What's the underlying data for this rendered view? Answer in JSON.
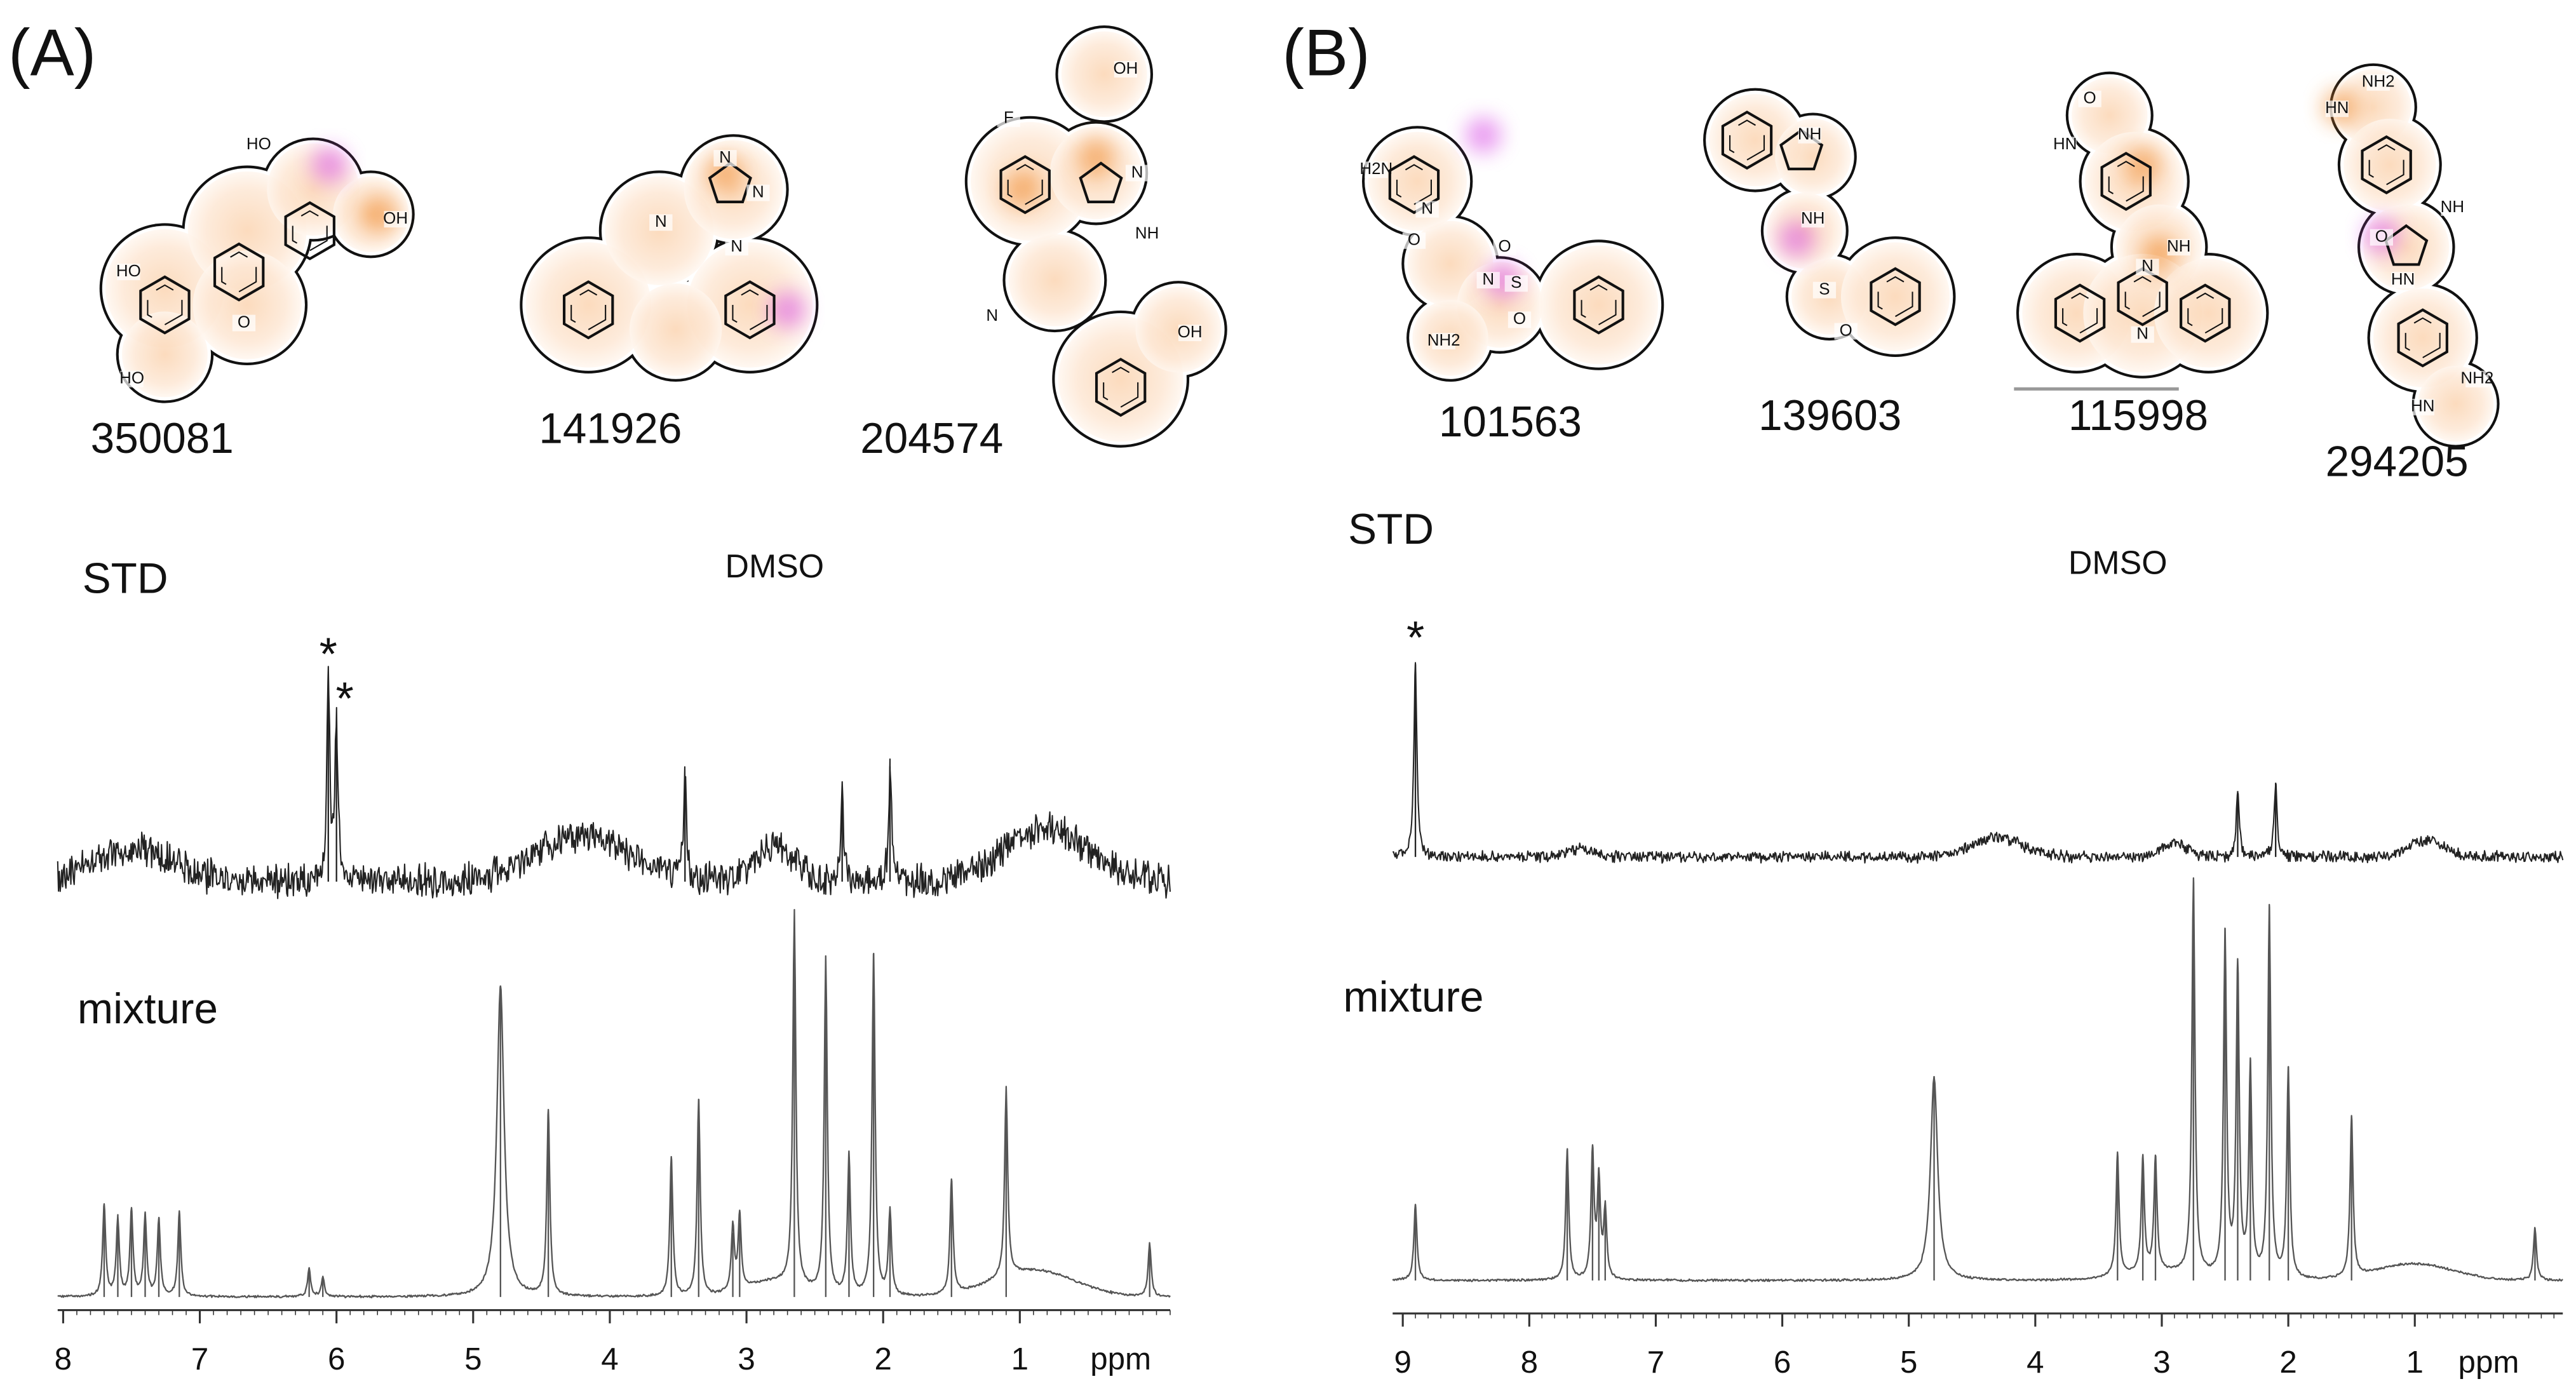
{
  "panels": [
    {
      "label": "(A)",
      "compounds": [
        {
          "id": "350081",
          "atoms": [
            "HO",
            "HO",
            "OH",
            "O",
            "HO"
          ]
        },
        {
          "id": "141926",
          "atoms": [
            "N",
            "N",
            "N",
            "N"
          ]
        },
        {
          "id": "204574",
          "atoms": [
            "F",
            "OH",
            "N",
            "NH",
            "N",
            "OH"
          ]
        }
      ],
      "std": {
        "label": "STD",
        "solvent": "DMSO",
        "peaks": [
          {
            "ppm": 6.06,
            "intensity": 122,
            "marker": "*"
          },
          {
            "ppm": 6.0,
            "intensity": 95,
            "marker": "*"
          },
          {
            "ppm": 3.45,
            "intensity": 60
          },
          {
            "ppm": 2.3,
            "intensity": 55
          },
          {
            "ppm": 1.95,
            "intensity": 70
          }
        ]
      },
      "mixture": {
        "label": "mixture",
        "peaks": [
          {
            "ppm": 7.7,
            "intensity": 55
          },
          {
            "ppm": 7.6,
            "intensity": 47
          },
          {
            "ppm": 7.5,
            "intensity": 52
          },
          {
            "ppm": 7.4,
            "intensity": 49
          },
          {
            "ppm": 7.3,
            "intensity": 47
          },
          {
            "ppm": 7.15,
            "intensity": 51
          },
          {
            "ppm": 6.2,
            "intensity": 17
          },
          {
            "ppm": 6.1,
            "intensity": 12
          },
          {
            "ppm": 4.8,
            "intensity": 189
          },
          {
            "ppm": 4.45,
            "intensity": 112
          },
          {
            "ppm": 3.55,
            "intensity": 84
          },
          {
            "ppm": 3.35,
            "intensity": 119
          },
          {
            "ppm": 3.1,
            "intensity": 39
          },
          {
            "ppm": 3.05,
            "intensity": 45
          },
          {
            "ppm": 2.65,
            "intensity": 227
          },
          {
            "ppm": 2.42,
            "intensity": 204
          },
          {
            "ppm": 2.25,
            "intensity": 85
          },
          {
            "ppm": 2.07,
            "intensity": 207
          },
          {
            "ppm": 1.95,
            "intensity": 52
          },
          {
            "ppm": 1.5,
            "intensity": 69
          },
          {
            "ppm": 1.1,
            "intensity": 115
          },
          {
            "ppm": 0.05,
            "intensity": 32
          }
        ]
      },
      "axis": {
        "xlim": [
          8.04,
          -0.1
        ],
        "xticks": [
          8,
          7,
          6,
          5,
          4,
          3,
          2,
          1
        ],
        "label": "ppm"
      }
    },
    {
      "label": "(B)",
      "compounds": [
        {
          "id": "101563",
          "atoms": [
            "H2N",
            "N",
            "O",
            "N",
            "S",
            "O",
            "O",
            "NH2"
          ]
        },
        {
          "id": "139603",
          "atoms": [
            "NH",
            "NH",
            "S",
            "O"
          ]
        },
        {
          "id": "115998",
          "atoms": [
            "O",
            "HN",
            "N",
            "NH",
            "N"
          ]
        },
        {
          "id": "294205",
          "atoms": [
            "NH2",
            "HN",
            "NH",
            "O",
            "HN",
            "NH2",
            "HN"
          ]
        }
      ],
      "std": {
        "label": "STD",
        "solvent": "DMSO",
        "peaks": [
          {
            "ppm": 8.9,
            "intensity": 117,
            "marker": "*"
          },
          {
            "ppm": 2.4,
            "intensity": 40
          },
          {
            "ppm": 2.1,
            "intensity": 45
          }
        ]
      },
      "mixture": {
        "label": "mixture",
        "peaks": [
          {
            "ppm": 8.9,
            "intensity": 46
          },
          {
            "ppm": 7.7,
            "intensity": 79
          },
          {
            "ppm": 7.5,
            "intensity": 77
          },
          {
            "ppm": 7.45,
            "intensity": 59
          },
          {
            "ppm": 7.4,
            "intensity": 42
          },
          {
            "ppm": 4.8,
            "intensity": 124
          },
          {
            "ppm": 3.35,
            "intensity": 74
          },
          {
            "ppm": 3.15,
            "intensity": 69
          },
          {
            "ppm": 3.05,
            "intensity": 69
          },
          {
            "ppm": 2.75,
            "intensity": 239
          },
          {
            "ppm": 2.5,
            "intensity": 207
          },
          {
            "ppm": 2.4,
            "intensity": 187
          },
          {
            "ppm": 2.3,
            "intensity": 127
          },
          {
            "ppm": 2.15,
            "intensity": 224
          },
          {
            "ppm": 2.0,
            "intensity": 127
          },
          {
            "ppm": 1.5,
            "intensity": 97
          },
          {
            "ppm": 0.05,
            "intensity": 32
          }
        ]
      },
      "axis": {
        "xlim": [
          9.08,
          -0.17
        ],
        "xticks": [
          9,
          8,
          7,
          6,
          5,
          4,
          3,
          2,
          1
        ],
        "label": "ppm"
      }
    }
  ]
}
